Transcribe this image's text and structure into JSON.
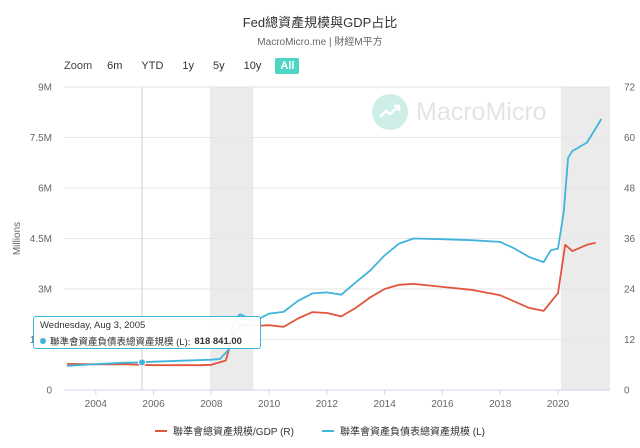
{
  "header": {
    "title": "Fed總資產規模與GDP占比",
    "subtitle": "MacroMicro.me | 財經M平方"
  },
  "zoom": {
    "label": "Zoom",
    "buttons": [
      "6m",
      "YTD",
      "1y",
      "5y",
      "10y",
      "All"
    ],
    "active": "All"
  },
  "watermark": {
    "text": "MacroMicro"
  },
  "tooltip": {
    "date": "Wednesday, Aug 3, 2005",
    "series": "聯準會資產負債表總資產規模 (L):",
    "value": "818 841.00"
  },
  "colors": {
    "series_left": "#41b4dc",
    "series_right": "#e2553d",
    "recession_band": "#ebebeb",
    "zoom_active": "#4dd6c4"
  },
  "chart_data": {
    "type": "line",
    "title": "Fed總資產規模與GDP占比",
    "subtitle": "MacroMicro.me | 財經M平方",
    "ylabel_left": "Millions",
    "ylim_left": [
      0,
      9000000
    ],
    "ylim_right": [
      0,
      72
    ],
    "yticks_left": [
      "0",
      "1.5M",
      "3M",
      "4.5M",
      "6M",
      "7.5M",
      "9M"
    ],
    "yticks_right": [
      "0",
      "12",
      "24",
      "36",
      "48",
      "60",
      "72"
    ],
    "xticks": [
      "2004",
      "2006",
      "2008",
      "2010",
      "2012",
      "2014",
      "2016",
      "2018",
      "2020"
    ],
    "xlim": [
      2002.9,
      2021.8
    ],
    "recession_bands": [
      [
        2007.95,
        2009.45
      ],
      [
        2020.1,
        2021.8
      ]
    ],
    "legend_position": "bottom",
    "series": [
      {
        "name": "聯準會總資產規模/GDP (R)",
        "axis": "right",
        "color": "#e2553d",
        "points": [
          [
            2003.0,
            6.2
          ],
          [
            2004.0,
            6.1
          ],
          [
            2005.0,
            6.1
          ],
          [
            2005.6,
            6.0
          ],
          [
            2006.0,
            5.9
          ],
          [
            2007.0,
            5.9
          ],
          [
            2007.6,
            5.9
          ],
          [
            2008.0,
            6.0
          ],
          [
            2008.5,
            7.0
          ],
          [
            2008.75,
            13.0
          ],
          [
            2009.0,
            15.5
          ],
          [
            2009.5,
            15.2
          ],
          [
            2010.0,
            15.4
          ],
          [
            2010.5,
            15.0
          ],
          [
            2011.0,
            17.0
          ],
          [
            2011.5,
            18.5
          ],
          [
            2012.0,
            18.3
          ],
          [
            2012.5,
            17.5
          ],
          [
            2013.0,
            19.5
          ],
          [
            2013.5,
            22.0
          ],
          [
            2014.0,
            24.0
          ],
          [
            2014.5,
            25.0
          ],
          [
            2015.0,
            25.2
          ],
          [
            2016.0,
            24.5
          ],
          [
            2017.0,
            23.8
          ],
          [
            2018.0,
            22.5
          ],
          [
            2019.0,
            19.5
          ],
          [
            2019.5,
            18.8
          ],
          [
            2020.0,
            23.0
          ],
          [
            2020.25,
            34.5
          ],
          [
            2020.5,
            33.0
          ],
          [
            2021.0,
            34.5
          ],
          [
            2021.3,
            35.0
          ]
        ]
      },
      {
        "name": "聯準會資產負債表總資產規模 (L)",
        "axis": "left",
        "color": "#41b4dc",
        "points": [
          [
            2003.0,
            720000
          ],
          [
            2004.0,
            770000
          ],
          [
            2005.0,
            810000
          ],
          [
            2005.6,
            818841
          ],
          [
            2006.0,
            840000
          ],
          [
            2007.0,
            870000
          ],
          [
            2008.0,
            900000
          ],
          [
            2008.3,
            920000
          ],
          [
            2008.6,
            1200000
          ],
          [
            2008.8,
            2100000
          ],
          [
            2009.0,
            2250000
          ],
          [
            2009.5,
            2050000
          ],
          [
            2010.0,
            2270000
          ],
          [
            2010.5,
            2320000
          ],
          [
            2011.0,
            2650000
          ],
          [
            2011.5,
            2870000
          ],
          [
            2012.0,
            2900000
          ],
          [
            2012.5,
            2830000
          ],
          [
            2013.0,
            3200000
          ],
          [
            2013.5,
            3550000
          ],
          [
            2014.0,
            4000000
          ],
          [
            2014.5,
            4350000
          ],
          [
            2015.0,
            4500000
          ],
          [
            2016.0,
            4480000
          ],
          [
            2017.0,
            4450000
          ],
          [
            2018.0,
            4400000
          ],
          [
            2018.5,
            4200000
          ],
          [
            2019.0,
            3950000
          ],
          [
            2019.5,
            3800000
          ],
          [
            2019.75,
            4150000
          ],
          [
            2020.0,
            4200000
          ],
          [
            2020.2,
            5300000
          ],
          [
            2020.35,
            6900000
          ],
          [
            2020.5,
            7100000
          ],
          [
            2021.0,
            7350000
          ],
          [
            2021.4,
            7900000
          ],
          [
            2021.5,
            8050000
          ]
        ]
      }
    ]
  }
}
